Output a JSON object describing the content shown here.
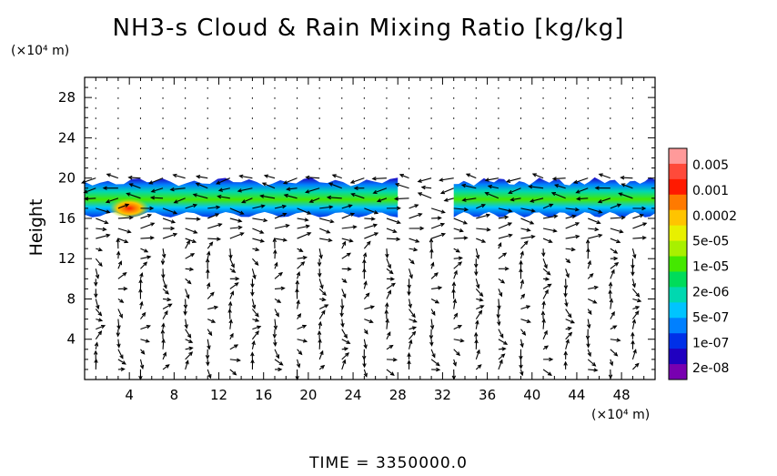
{
  "title": "NH3-s Cloud & Rain Mixing Ratio [kg/kg]",
  "time_label": "TIME  =  3350000.0",
  "chart_data": {
    "type": "heatmap",
    "title": "NH3-s Cloud & Rain Mixing Ratio [kg/kg]",
    "xlabel": "",
    "ylabel": "Height",
    "x_unit": "(×10⁴ m)",
    "y_unit": "(×10⁴ m)",
    "xlim": [
      0,
      51
    ],
    "ylim": [
      0,
      30
    ],
    "x_ticks": [
      4,
      8,
      12,
      16,
      20,
      24,
      28,
      32,
      36,
      40,
      44,
      48
    ],
    "x_tick_labels": [
      "4",
      "8",
      "12",
      "16",
      "20",
      "24",
      "28",
      "32",
      "36",
      "40",
      "44",
      "48"
    ],
    "y_ticks": [
      4,
      8,
      12,
      16,
      20,
      24,
      28
    ],
    "y_tick_labels": [
      "4",
      "8",
      "12",
      "16",
      "20",
      "24",
      "28"
    ],
    "grid": false,
    "colorbar": {
      "labels": [
        "0.005",
        "0.001",
        "0.0002",
        "5e-05",
        "1e-05",
        "2e-06",
        "5e-07",
        "1e-07",
        "2e-08"
      ],
      "colors": [
        "#ff9a9a",
        "#ff4a3a",
        "#ff1a00",
        "#ff7a00",
        "#ffc400",
        "#e8f000",
        "#a8f000",
        "#44e800",
        "#00dc5a",
        "#00d8b0",
        "#00c4ff",
        "#0080ff",
        "#0030e8",
        "#2000c0",
        "#7800b0"
      ]
    },
    "cloud_band": {
      "y_range": [
        16,
        20
      ],
      "segments_x": [
        [
          0,
          28
        ],
        [
          33,
          51
        ]
      ],
      "core": {
        "x": 4,
        "y": 17,
        "max_value": "0.0002"
      }
    },
    "overlay": "wind vectors"
  }
}
